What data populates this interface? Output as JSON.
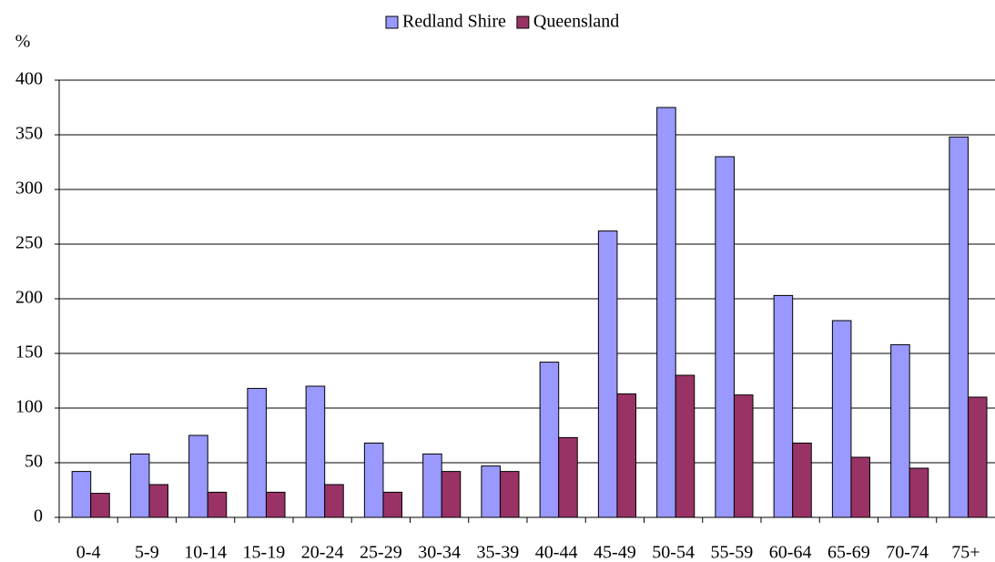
{
  "chart_data": {
    "type": "bar",
    "y_label": "%",
    "categories": [
      "0-4",
      "5-9",
      "10-14",
      "15-19",
      "20-24",
      "25-29",
      "30-34",
      "35-39",
      "40-44",
      "45-49",
      "50-54",
      "55-59",
      "60-64",
      "65-69",
      "70-74",
      "75+"
    ],
    "series": [
      {
        "name": "Redland Shire",
        "color": "#9999ff",
        "values": [
          42,
          58,
          75,
          118,
          120,
          68,
          58,
          47,
          142,
          262,
          375,
          330,
          203,
          180,
          158,
          348
        ]
      },
      {
        "name": "Queensland",
        "color": "#993366",
        "values": [
          22,
          30,
          23,
          23,
          30,
          23,
          42,
          42,
          73,
          113,
          130,
          112,
          68,
          55,
          45,
          110
        ]
      }
    ],
    "ylim": [
      0,
      400
    ],
    "yticks": [
      0,
      50,
      100,
      150,
      200,
      250,
      300,
      350,
      400
    ],
    "grid": true,
    "legend": "top"
  }
}
